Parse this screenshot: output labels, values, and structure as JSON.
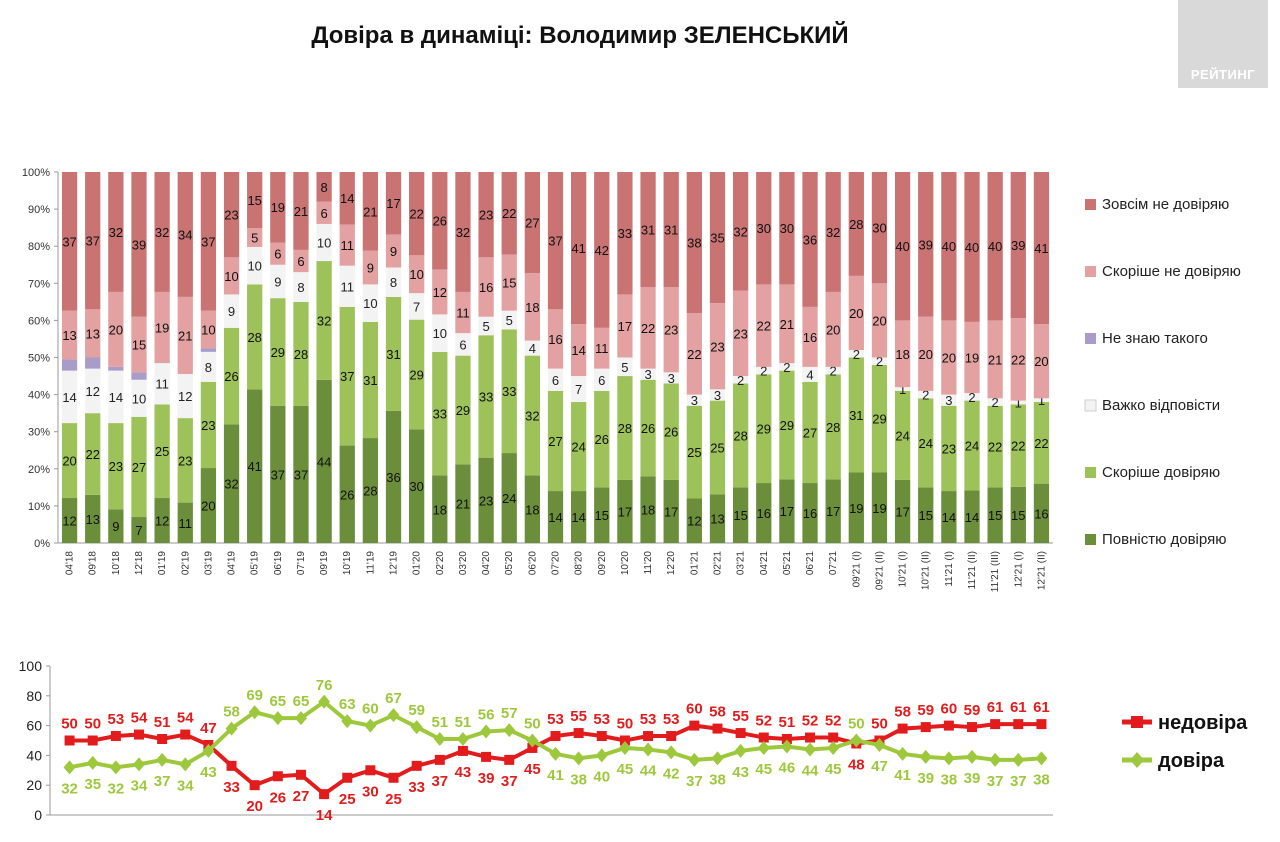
{
  "title": "Довіра в динаміці: Володимир ЗЕЛЕНСЬКИЙ",
  "logo_text": "РЕЙТИНГ",
  "chart_data": [
    {
      "type": "bar",
      "stacked": true,
      "percent_axis": true,
      "ylim": [
        0,
        100
      ],
      "yticks": [
        "0%",
        "10%",
        "20%",
        "30%",
        "40%",
        "50%",
        "60%",
        "70%",
        "80%",
        "90%",
        "100%"
      ],
      "categories": [
        "04'18",
        "09'18",
        "10'18",
        "12'18",
        "01'19",
        "02'19",
        "03'19",
        "04'19",
        "05'19",
        "06'19",
        "07'19",
        "09'19",
        "10'19",
        "11'19",
        "12'19",
        "01'20",
        "02'20",
        "03'20",
        "04'20",
        "05'20",
        "06'20",
        "07'20",
        "08'20",
        "09'20",
        "10'20",
        "11'20",
        "12'20",
        "01'21",
        "02'21",
        "03'21",
        "04'21",
        "05'21",
        "06'21",
        "07'21",
        "09'21 (I)",
        "09'21 (II)",
        "10'21 (I)",
        "10'21 (II)",
        "11'21 (I)",
        "11'21 (II)",
        "11'21 (III)",
        "12'21 (I)",
        "12'21 (II)"
      ],
      "legend_position": "right",
      "series": [
        {
          "name": "Повністю довіряю",
          "color": "#6b8e3a",
          "values": [
            12,
            13,
            9,
            7,
            12,
            11,
            20,
            32,
            41,
            37,
            37,
            44,
            26,
            28,
            36,
            30,
            18,
            21,
            23,
            24,
            18,
            14,
            14,
            15,
            17,
            18,
            17,
            12,
            13,
            15,
            16,
            17,
            16,
            17,
            19,
            19,
            17,
            15,
            14,
            14,
            15,
            15,
            16
          ],
          "labels": [
            "12",
            "13",
            "9",
            "7",
            "12",
            "11",
            "20",
            "32",
            "41",
            "37",
            "37",
            "44",
            "26",
            "28",
            "36",
            "30",
            "18",
            "21",
            "23",
            "24",
            "18",
            "14",
            "14",
            "15",
            "17",
            "18",
            "17",
            "12",
            "13",
            "15",
            "16",
            "17",
            "16",
            "17",
            "19",
            "19",
            "17",
            "15",
            "14",
            "14",
            "15",
            "15",
            "16"
          ]
        },
        {
          "name": "Скоріше довіряю",
          "color": "#9dc25a",
          "values": [
            20,
            22,
            23,
            27,
            25,
            23,
            23,
            26,
            28,
            29,
            28,
            32,
            37,
            31,
            31,
            29,
            33,
            29,
            33,
            33,
            32,
            27,
            24,
            26,
            28,
            26,
            26,
            25,
            25,
            28,
            29,
            29,
            27,
            28,
            31,
            29,
            24,
            24,
            23,
            24,
            22,
            22,
            22
          ],
          "labels": [
            "20",
            "22",
            "23",
            "27",
            "25",
            "23",
            "23",
            "26",
            "28",
            "29",
            "28",
            "32",
            "37",
            "31",
            "31",
            "29",
            "33",
            "29",
            "33",
            "33",
            "32",
            "27",
            "24",
            "26",
            "28",
            "26",
            "26",
            "25",
            "25",
            "28",
            "29",
            "29",
            "27",
            "28",
            "31",
            "29",
            "24",
            "24",
            "23",
            "24",
            "22",
            "22",
            "22"
          ]
        },
        {
          "name": "Важко відповісти",
          "color": "#f3f3f3",
          "values": [
            14,
            12,
            14,
            10,
            11,
            12,
            8,
            9,
            10,
            9,
            8,
            10,
            11,
            10,
            8,
            7,
            10,
            6,
            5,
            5,
            4,
            6,
            7,
            6,
            5,
            3,
            3,
            3,
            3,
            2,
            2,
            2,
            4,
            2,
            2,
            2,
            1,
            2,
            3,
            2,
            2,
            1,
            1
          ],
          "labels": [
            "14",
            "12",
            "14",
            "10",
            "11",
            "12",
            "8",
            "9",
            "10",
            "9",
            "8",
            "10",
            "11",
            "10",
            "8",
            "7",
            "10",
            "6",
            "5",
            "5",
            "4",
            "6",
            "7",
            "6",
            "5",
            "3",
            "3",
            "3",
            "3",
            "2",
            "2",
            "2",
            "4",
            "2",
            "2",
            "2",
            "1",
            "2",
            "3",
            "2",
            "2",
            "1",
            "1"
          ]
        },
        {
          "name": "Не знаю такого",
          "color": "#a99cc8",
          "values": [
            3,
            3,
            1,
            2,
            0,
            0,
            1,
            0,
            0,
            0,
            0,
            0,
            0,
            0,
            0,
            0,
            0,
            0,
            0,
            0,
            0,
            0,
            0,
            0,
            0,
            0,
            0,
            0,
            0,
            0,
            0,
            0,
            0,
            0,
            0,
            0,
            0,
            0,
            0,
            0,
            0,
            0,
            0
          ],
          "labels": [
            "",
            "",
            "",
            "",
            "",
            "",
            "",
            "",
            "",
            "",
            "",
            "",
            "",
            "",
            "",
            "",
            "",
            "",
            "",
            "",
            "",
            "",
            "",
            "",
            "",
            "",
            "",
            "",
            "",
            "",
            "",
            "",
            "",
            "",
            "",
            "",
            "",
            "",
            "",
            "",
            "",
            "",
            ""
          ]
        },
        {
          "name": "Скоріше не довіряю",
          "color": "#e3a1a1",
          "values": [
            13,
            13,
            20,
            15,
            19,
            21,
            10,
            10,
            5,
            6,
            6,
            6,
            11,
            9,
            9,
            10,
            12,
            11,
            16,
            15,
            18,
            16,
            14,
            11,
            17,
            22,
            23,
            22,
            23,
            23,
            22,
            21,
            16,
            20,
            20,
            20,
            18,
            20,
            20,
            19,
            21,
            22,
            20
          ],
          "labels": [
            "13",
            "13",
            "20",
            "15",
            "19",
            "21",
            "10",
            "10",
            "5",
            "6",
            "6",
            "6",
            "11",
            "9",
            "9",
            "10",
            "12",
            "11",
            "16",
            "15",
            "18",
            "16",
            "14",
            "11",
            "17",
            "22",
            "23",
            "22",
            "23",
            "23",
            "22",
            "21",
            "16",
            "20",
            "20",
            "20",
            "18",
            "20",
            "20",
            "19",
            "21",
            "22",
            "20"
          ]
        },
        {
          "name": "Зовсім не довіряю",
          "color": "#c97373",
          "values": [
            37,
            37,
            32,
            39,
            32,
            34,
            37,
            23,
            15,
            19,
            21,
            8,
            14,
            21,
            17,
            22,
            26,
            32,
            23,
            22,
            27,
            37,
            41,
            42,
            33,
            31,
            31,
            38,
            35,
            32,
            30,
            30,
            36,
            32,
            28,
            30,
            40,
            39,
            40,
            40,
            40,
            39,
            41
          ],
          "labels": [
            "37",
            "37",
            "32",
            "39",
            "32",
            "34",
            "37",
            "23",
            "15",
            "19",
            "21",
            "8",
            "14",
            "21",
            "17",
            "22",
            "26",
            "32",
            "23",
            "22",
            "27",
            "37",
            "41",
            "42",
            "33",
            "31",
            "31",
            "38",
            "35",
            "32",
            "30",
            "30",
            "36",
            "32",
            "28",
            "30",
            "40",
            "39",
            "40",
            "40",
            "40",
            "39",
            "41"
          ]
        }
      ]
    },
    {
      "type": "line",
      "ylim": [
        0,
        100
      ],
      "yticks": [
        "0",
        "20",
        "40",
        "60",
        "80",
        "100"
      ],
      "legend_position": "right",
      "series": [
        {
          "name": "недовіра",
          "color": "#e21c1c",
          "values": [
            50,
            50,
            53,
            54,
            51,
            54,
            47,
            33,
            20,
            26,
            27,
            14,
            25,
            30,
            25,
            33,
            37,
            43,
            39,
            37,
            45,
            53,
            55,
            53,
            50,
            53,
            53,
            60,
            58,
            55,
            52,
            51,
            52,
            52,
            48,
            50,
            58,
            59,
            60,
            59,
            61,
            61,
            61
          ],
          "labels": [
            "50",
            "50",
            "53",
            "54",
            "51",
            "54",
            "47",
            "33",
            "20",
            "26",
            "27",
            "14",
            "25",
            "30",
            "25",
            "33",
            "37",
            "43",
            "39",
            "37",
            "45",
            "53",
            "55",
            "53",
            "50",
            "53",
            "53",
            "60",
            "58",
            "55",
            "52",
            "51",
            "52",
            "52",
            "48",
            "50",
            "58",
            "59",
            "60",
            "59",
            "61",
            "61",
            "61"
          ]
        },
        {
          "name": "довіра",
          "color": "#9ec83c",
          "values": [
            32,
            35,
            32,
            34,
            37,
            34,
            43,
            58,
            69,
            65,
            65,
            76,
            63,
            60,
            67,
            59,
            51,
            51,
            56,
            57,
            50,
            41,
            38,
            40,
            45,
            44,
            42,
            37,
            38,
            43,
            45,
            46,
            44,
            45,
            50,
            47,
            41,
            39,
            38,
            39,
            37,
            37,
            38
          ],
          "labels": [
            "32",
            "35",
            "32",
            "34",
            "37",
            "34",
            "43",
            "58",
            "69",
            "65",
            "65",
            "76",
            "63",
            "60",
            "67",
            "59",
            "51",
            "51",
            "56",
            "57",
            "50",
            "41",
            "38",
            "40",
            "45",
            "44",
            "42",
            "37",
            "38",
            "43",
            "45",
            "46",
            "44",
            "45",
            "50",
            "47",
            "41",
            "39",
            "38",
            "39",
            "37",
            "37",
            "38"
          ]
        }
      ]
    }
  ]
}
